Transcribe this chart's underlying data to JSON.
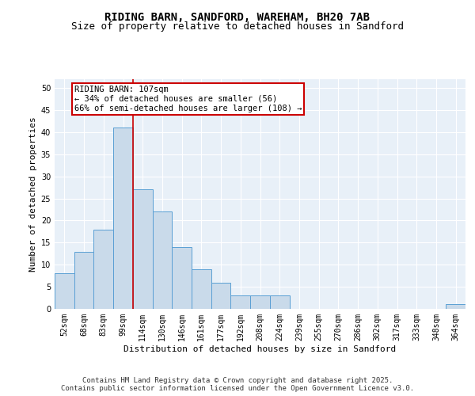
{
  "title_line1": "RIDING BARN, SANDFORD, WAREHAM, BH20 7AB",
  "title_line2": "Size of property relative to detached houses in Sandford",
  "xlabel": "Distribution of detached houses by size in Sandford",
  "ylabel": "Number of detached properties",
  "bar_labels": [
    "52sqm",
    "68sqm",
    "83sqm",
    "99sqm",
    "114sqm",
    "130sqm",
    "146sqm",
    "161sqm",
    "177sqm",
    "192sqm",
    "208sqm",
    "224sqm",
    "239sqm",
    "255sqm",
    "270sqm",
    "286sqm",
    "302sqm",
    "317sqm",
    "333sqm",
    "348sqm",
    "364sqm"
  ],
  "bar_values": [
    8,
    13,
    18,
    41,
    27,
    22,
    14,
    9,
    6,
    3,
    3,
    3,
    0,
    0,
    0,
    0,
    0,
    0,
    0,
    0,
    1
  ],
  "bar_color": "#c9daea",
  "bar_edge_color": "#5a9fd4",
  "background_color": "#e8f0f8",
  "grid_color": "#ffffff",
  "annotation_box_color": "#cc0000",
  "annotation_text": "RIDING BARN: 107sqm\n← 34% of detached houses are smaller (56)\n66% of semi-detached houses are larger (108) →",
  "vline_x_index": 3.5,
  "vline_color": "#cc0000",
  "ylim": [
    0,
    52
  ],
  "yticks": [
    0,
    5,
    10,
    15,
    20,
    25,
    30,
    35,
    40,
    45,
    50
  ],
  "footer_text": "Contains HM Land Registry data © Crown copyright and database right 2025.\nContains public sector information licensed under the Open Government Licence v3.0.",
  "title_fontsize": 10,
  "subtitle_fontsize": 9,
  "axis_label_fontsize": 8,
  "tick_fontsize": 7,
  "annotation_fontsize": 7.5,
  "footer_fontsize": 6.5
}
